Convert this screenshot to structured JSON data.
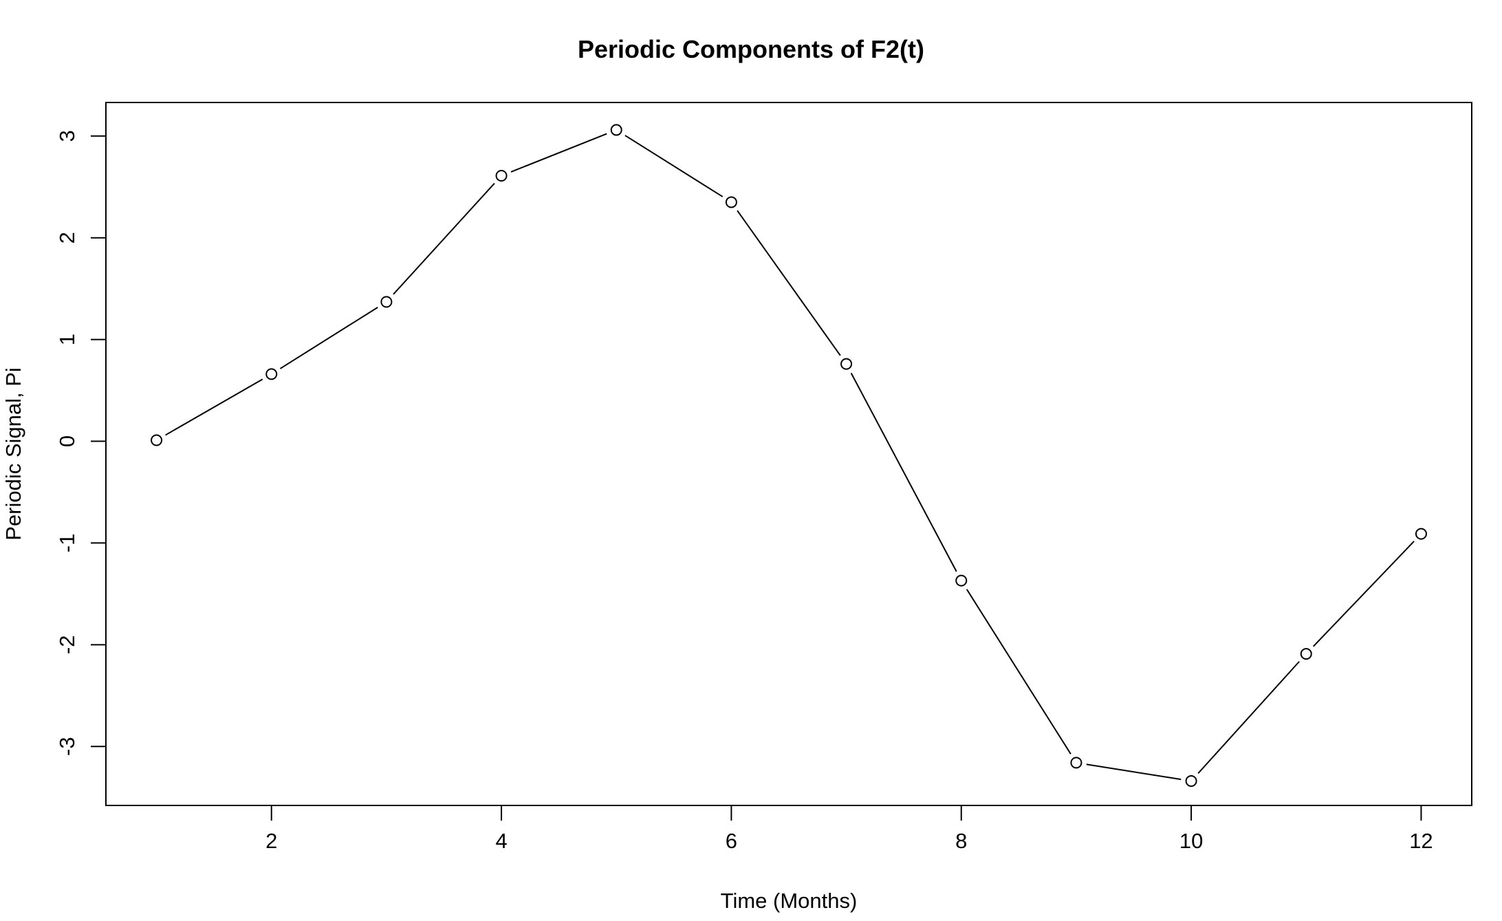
{
  "chart_data": {
    "type": "line",
    "title": "Periodic Components of F2(t)",
    "xlabel": "Time (Months)",
    "ylabel": "Periodic Signal, Pi",
    "x": [
      1,
      2,
      3,
      4,
      5,
      6,
      7,
      8,
      9,
      10,
      11,
      12
    ],
    "series": [
      {
        "values": [
          0.01,
          0.66,
          1.37,
          2.61,
          3.06,
          2.35,
          0.76,
          -1.37,
          -3.16,
          -3.34,
          -2.09,
          -0.91
        ]
      }
    ],
    "xlim": [
      0.56,
      12.44
    ],
    "ylim": [
      -3.58,
      3.33
    ],
    "x_ticks": [
      2,
      4,
      6,
      8,
      10,
      12
    ],
    "y_ticks": [
      -3,
      -2,
      -1,
      0,
      1,
      2,
      3
    ],
    "marker": "open-circle",
    "line_color": "#000000",
    "marker_fill": "#ffffff",
    "grid": false,
    "legend": "none"
  }
}
